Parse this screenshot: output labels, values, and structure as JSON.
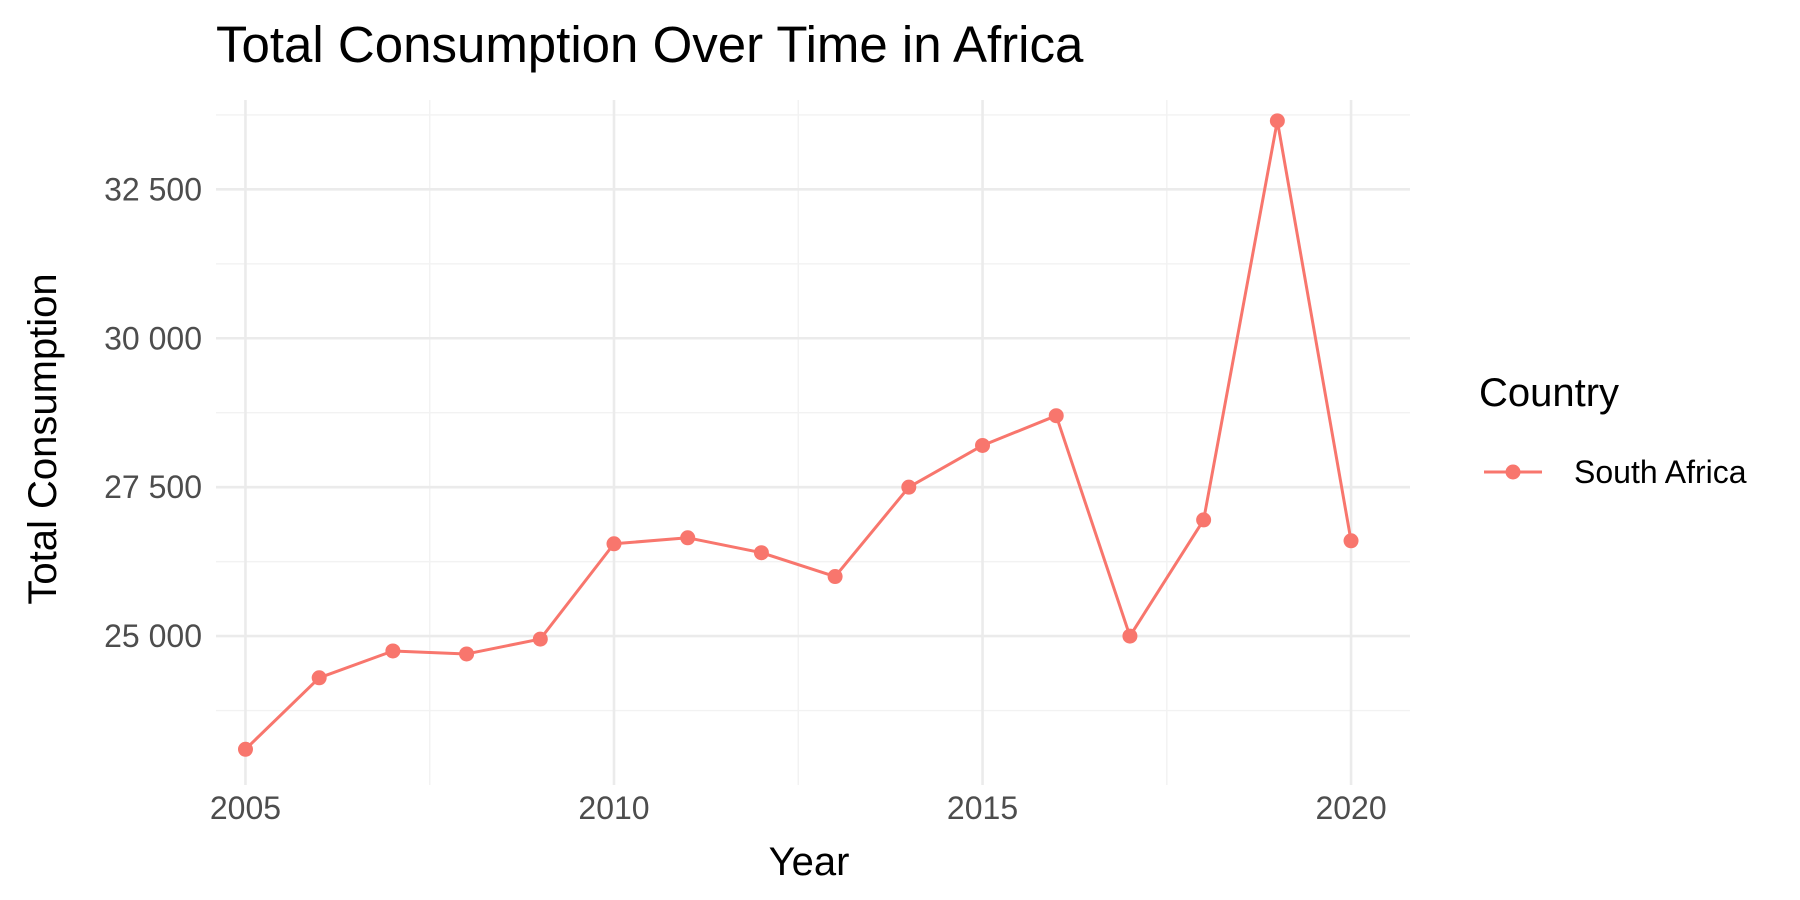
{
  "chart_data": {
    "type": "line",
    "title": "Total Consumption Over Time in Africa",
    "xlabel": "Year",
    "ylabel": "Total Consumption",
    "xlim": [
      2004.6,
      2020.8
    ],
    "ylim": [
      22500,
      34000
    ],
    "x_ticks": [
      2005,
      2010,
      2015,
      2020
    ],
    "x_minor_ticks": [
      2007.5,
      2012.5,
      2017.5
    ],
    "y_ticks": [
      25000,
      27500,
      30000,
      32500
    ],
    "y_tick_labels": [
      "25 000",
      "27 500",
      "30 000",
      "32 500"
    ],
    "y_minor_ticks": [
      23750,
      26250,
      28750,
      31250,
      33750
    ],
    "grid": true,
    "legend": {
      "title": "Country",
      "position": "right"
    },
    "x": [
      2005,
      2006,
      2007,
      2008,
      2009,
      2010,
      2011,
      2012,
      2013,
      2014,
      2015,
      2016,
      2017,
      2018,
      2019,
      2020
    ],
    "series": [
      {
        "name": "South Africa",
        "color": "#F8766D",
        "values": [
          23100,
          24300,
          24750,
          24700,
          24950,
          26550,
          26650,
          26400,
          26000,
          27500,
          28200,
          28700,
          25000,
          26950,
          33650,
          26600
        ]
      }
    ]
  }
}
